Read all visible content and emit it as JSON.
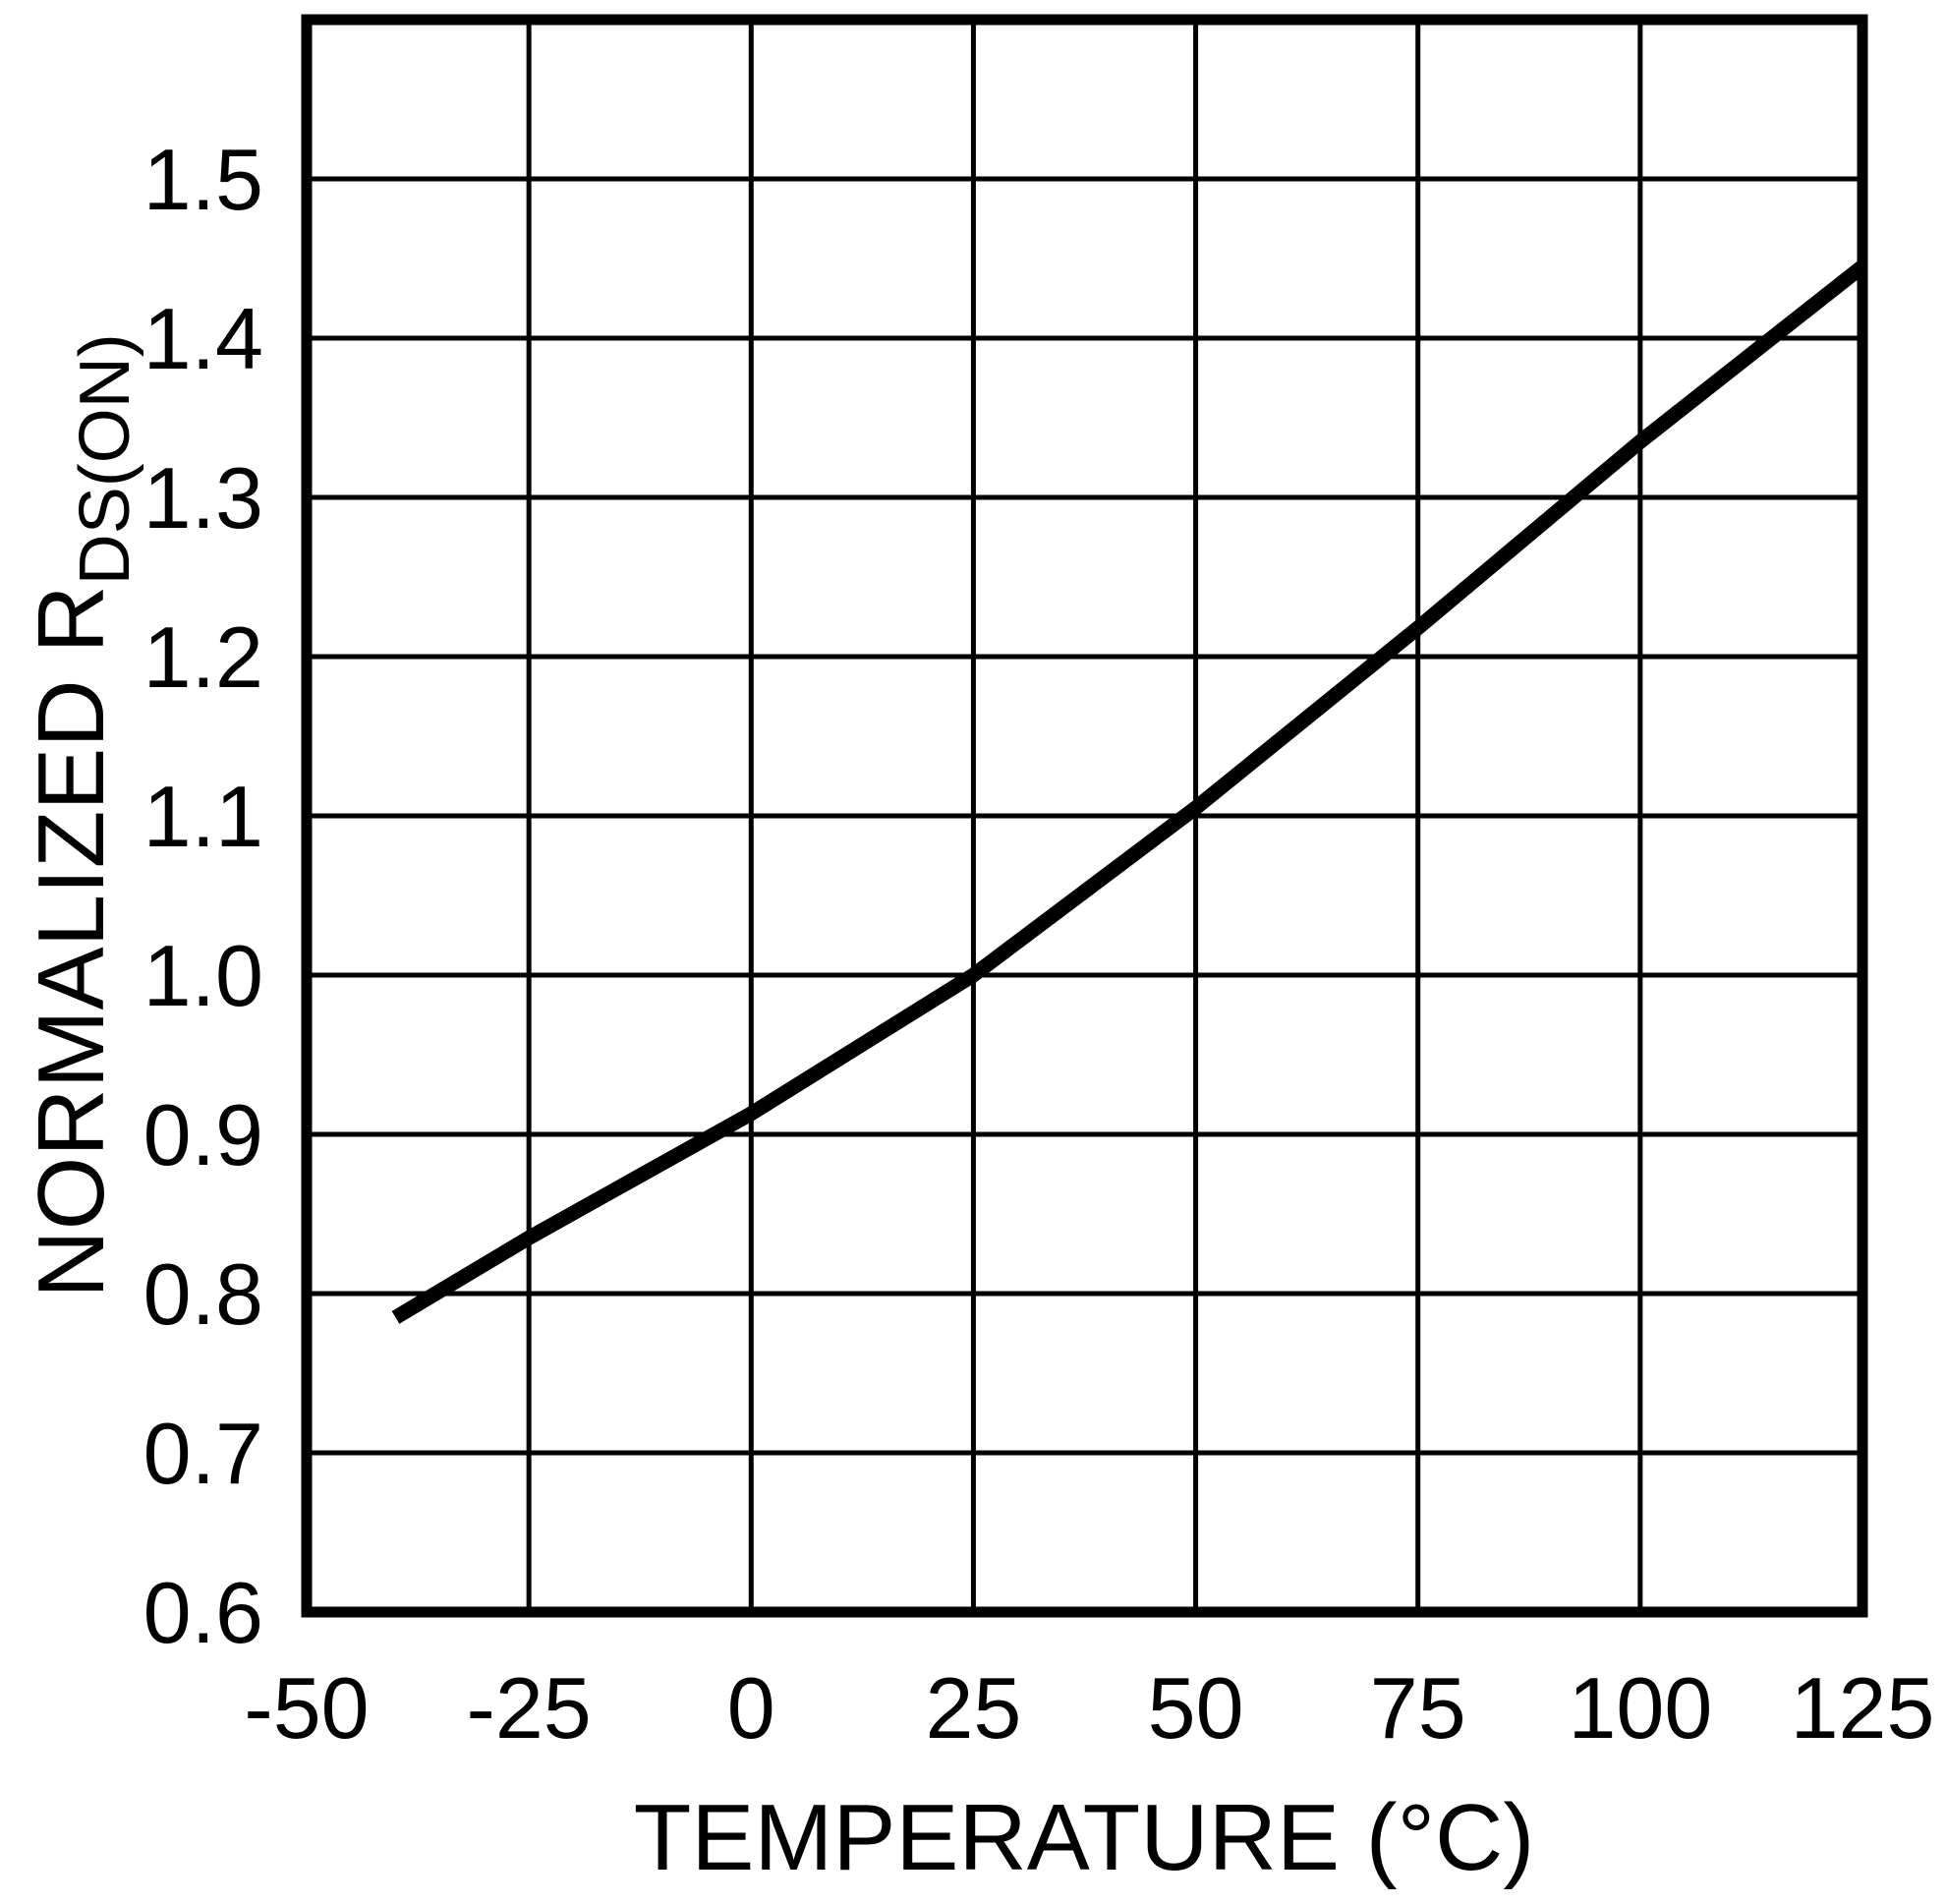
{
  "figure": {
    "background_color": "#ffffff",
    "line_color": "#000000",
    "grid_color": "#000000"
  },
  "chart_data": {
    "type": "line",
    "title": "",
    "xlabel": "TEMPERATURE (°C)",
    "ylabel": "NORMALIZED R",
    "ylabel_sub": "DS(ON)",
    "xlim": [
      -50,
      125
    ],
    "ylim": [
      0.6,
      1.6
    ],
    "xticks": [
      -50,
      -25,
      0,
      25,
      50,
      75,
      100,
      125
    ],
    "yticks": [
      0.6,
      0.7,
      0.8,
      0.9,
      1.0,
      1.1,
      1.2,
      1.3,
      1.4,
      1.5
    ],
    "grid": true,
    "legend": "none",
    "series": [
      {
        "name": "normalized-rdson-vs-temperature",
        "color": "#000000",
        "points": [
          [
            -40,
            0.785
          ],
          [
            -25,
            0.835
          ],
          [
            0,
            0.913
          ],
          [
            25,
            1.0
          ],
          [
            50,
            1.105
          ],
          [
            75,
            1.218
          ],
          [
            100,
            1.335
          ],
          [
            125,
            1.445
          ]
        ]
      }
    ]
  }
}
